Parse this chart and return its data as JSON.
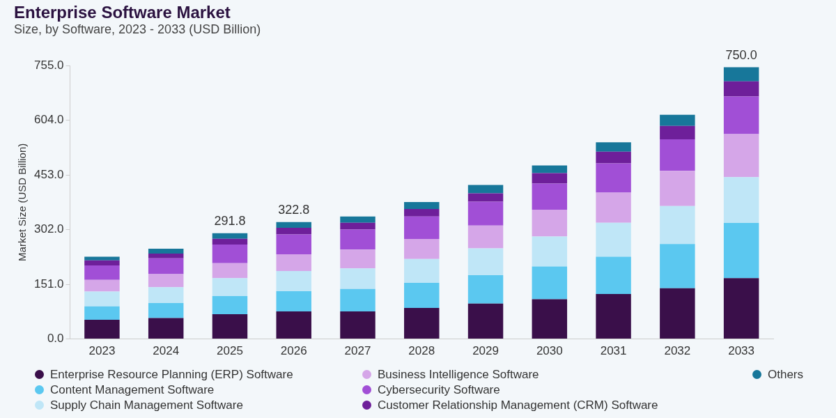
{
  "chart_data": {
    "type": "bar",
    "title": "Enterprise Software Market",
    "subtitle": "Size, by Software, 2023 - 2033 (USD Billion)",
    "ylabel": "Market Size (USD Billion)",
    "categories": [
      "2023",
      "2024",
      "2025",
      "2026",
      "2027",
      "2028",
      "2029",
      "2030",
      "2031",
      "2032",
      "2033"
    ],
    "stacked": true,
    "legend": "bottom",
    "grid": false,
    "ylim": [
      0,
      755
    ],
    "yticks": [
      {
        "value": 0,
        "label": "0.0"
      },
      {
        "value": 151,
        "label": "151.0"
      },
      {
        "value": 302,
        "label": "302.0"
      },
      {
        "value": 453,
        "label": "453.0"
      },
      {
        "value": 604,
        "label": "604.0"
      },
      {
        "value": 755,
        "label": "755.0"
      }
    ],
    "totals": [
      null,
      null,
      "291.8",
      "322.8",
      null,
      null,
      null,
      null,
      null,
      null,
      "750.0"
    ],
    "series": [
      {
        "name": "Enterprise Resource Planning (ERP) Software",
        "color": "#3a0f4a",
        "values": [
          53,
          58,
          68.4,
          76.1,
          76,
          86,
          98,
          110,
          124,
          140,
          168.2
        ]
      },
      {
        "name": "Content Management Software",
        "color": "#5bc8f0",
        "values": [
          37,
          41,
          50.2,
          55.8,
          62,
          69,
          78,
          90,
          103,
          122,
          152.1
        ]
      },
      {
        "name": "Supply Chain Management Software",
        "color": "#bfe6f7",
        "values": [
          41,
          44,
          49.2,
          55.8,
          57,
          66,
          74,
          83,
          94,
          105,
          126.4
        ]
      },
      {
        "name": "Business Intelligence Software",
        "color": "#d5a6e8",
        "values": [
          32,
          36,
          41.7,
          46.1,
          52,
          55,
          63,
          74,
          83,
          97,
          118.9
        ]
      },
      {
        "name": "Cybersecurity Software",
        "color": "#a14fd6",
        "values": [
          40,
          44,
          51.3,
          54.7,
          55,
          62,
          66,
          72,
          81,
          87,
          103.9
        ]
      },
      {
        "name": "Customer Relationship Management (CRM) Software",
        "color": "#6e1f9a",
        "values": [
          14,
          13,
          16,
          18.2,
          19,
          21,
          23,
          29,
          32,
          37,
          41.8
        ]
      },
      {
        "name": "Others",
        "color": "#17779a",
        "values": [
          10,
          13,
          15,
          16.1,
          17,
          19,
          23,
          21,
          26,
          31,
          38.7
        ]
      }
    ]
  }
}
